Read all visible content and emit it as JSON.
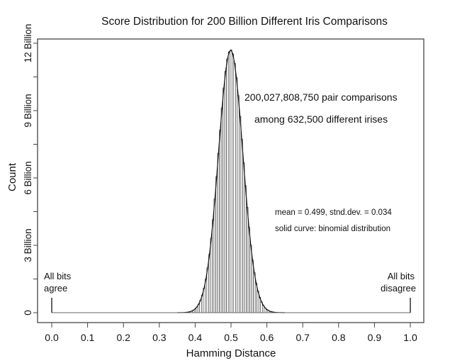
{
  "chart_data": {
    "type": "bar",
    "title": "Score Distribution for 200 Billion Different Iris Comparisons",
    "xlabel": "Hamming Distance",
    "ylabel": "Count",
    "xlim": [
      0.0,
      1.0
    ],
    "ylim_billions": [
      0,
      12
    ],
    "x_ticks": [
      "0.0",
      "0.1",
      "0.2",
      "0.3",
      "0.4",
      "0.5",
      "0.6",
      "0.7",
      "0.8",
      "0.9",
      "1.0"
    ],
    "x_tick_values": [
      0,
      0.1,
      0.2,
      0.3,
      0.4,
      0.5,
      0.6,
      0.7,
      0.8,
      0.9,
      1.0
    ],
    "y_ticks": [
      "0",
      "3 Billion",
      "6 Billion",
      "9 Billion",
      "12 Billion"
    ],
    "y_tick_values": [
      0,
      3,
      6,
      9,
      12
    ],
    "y_minor_tick_values": [
      1.5,
      4.5,
      7.5,
      10.5
    ],
    "bin_width": 0.005,
    "bin_centers": [
      0.37,
      0.375,
      0.38,
      0.385,
      0.39,
      0.395,
      0.4,
      0.405,
      0.41,
      0.415,
      0.42,
      0.425,
      0.43,
      0.435,
      0.44,
      0.445,
      0.45,
      0.455,
      0.46,
      0.465,
      0.47,
      0.475,
      0.48,
      0.485,
      0.49,
      0.495,
      0.5,
      0.505,
      0.51,
      0.515,
      0.52,
      0.525,
      0.53,
      0.535,
      0.54,
      0.545,
      0.55,
      0.555,
      0.56,
      0.565,
      0.57,
      0.575,
      0.58,
      0.585,
      0.59,
      0.595,
      0.6,
      0.605,
      0.61,
      0.615,
      0.62,
      0.625,
      0.63
    ],
    "counts_billions": [
      0.009,
      0.015,
      0.026,
      0.042,
      0.069,
      0.109,
      0.168,
      0.256,
      0.38,
      0.553,
      0.787,
      1.096,
      1.493,
      1.993,
      2.598,
      3.315,
      4.144,
      5.066,
      6.06,
      7.1,
      8.13,
      9.12,
      10.01,
      10.75,
      11.3,
      11.62,
      11.7,
      11.52,
      11.1,
      10.47,
      9.67,
      8.74,
      7.72,
      6.68,
      5.66,
      4.69,
      3.8,
      3.01,
      2.34,
      1.78,
      1.32,
      0.96,
      0.686,
      0.477,
      0.326,
      0.217,
      0.142,
      0.091,
      0.057,
      0.035,
      0.021,
      0.012,
      0.007
    ],
    "annotations": {
      "comparisons": "200,027,808,750 pair comparisons",
      "irises": "among 632,500 different irises",
      "stats": "mean = 0.499, stnd.dev. = 0.034",
      "curve": "solid curve:  binomial distribution",
      "left_marker": [
        "All bits",
        "agree"
      ],
      "right_marker": [
        "All bits",
        "disagree"
      ]
    },
    "colors": {
      "ink": "#111111",
      "axis": "#444444"
    }
  }
}
